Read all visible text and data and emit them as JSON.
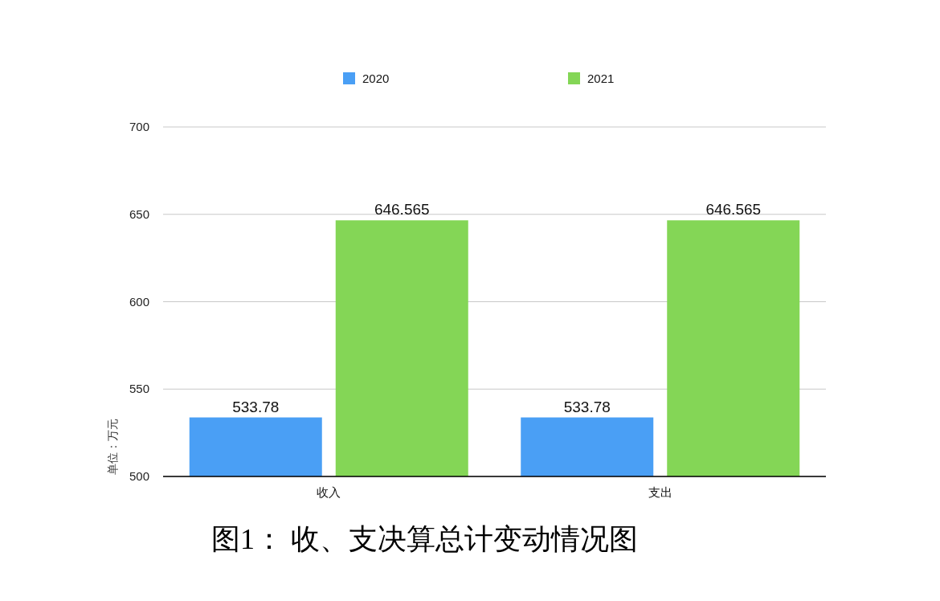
{
  "chart_data": {
    "type": "bar",
    "categories": [
      "收入",
      "支出"
    ],
    "series": [
      {
        "name": "2020",
        "color": "#4a9ff5",
        "values": [
          533.78,
          533.78
        ]
      },
      {
        "name": "2021",
        "color": "#84d656",
        "values": [
          646.565,
          646.565
        ]
      }
    ],
    "ylim": [
      500,
      700
    ],
    "yticks": [
      500,
      550,
      600,
      650,
      700
    ],
    "grid": "y",
    "legend": "top",
    "data_labels": true,
    "ylabel": "单位：万元",
    "annotations": [
      "图1： 收、支决算总计变动情况图"
    ]
  }
}
